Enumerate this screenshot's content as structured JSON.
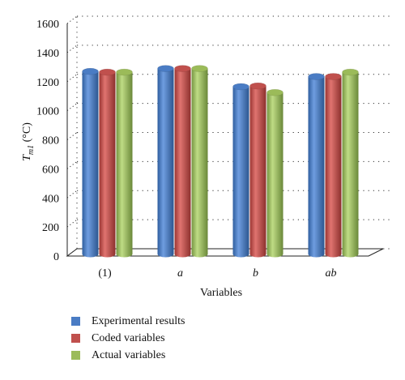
{
  "chart_data": {
    "type": "bar",
    "title": "",
    "xlabel": "Variables",
    "ylabel_main": "T",
    "ylabel_sub": "m1",
    "ylabel_unit": " (°C)",
    "ylim": [
      0,
      1600
    ],
    "yticks": [
      0,
      200,
      400,
      600,
      800,
      1000,
      1200,
      1400,
      1600
    ],
    "ytick_labels": [
      "0",
      "200",
      "400",
      "600",
      "800",
      "1000",
      "1200",
      "1400",
      "1600"
    ],
    "categories": [
      "(1)",
      "a",
      "b",
      "ab"
    ],
    "category_italic": [
      false,
      true,
      true,
      true
    ],
    "series": [
      {
        "name": "Experimental results",
        "values": [
          1245,
          1265,
          1140,
          1210
        ],
        "color": "#4a7cc4"
      },
      {
        "name": "Coded variables",
        "values": [
          1240,
          1265,
          1145,
          1210
        ],
        "color": "#c0504d"
      },
      {
        "name": "Actual variables",
        "values": [
          1240,
          1265,
          1100,
          1240
        ],
        "color": "#9bbb59"
      }
    ],
    "grid": true,
    "legend_position": "bottom-left"
  }
}
